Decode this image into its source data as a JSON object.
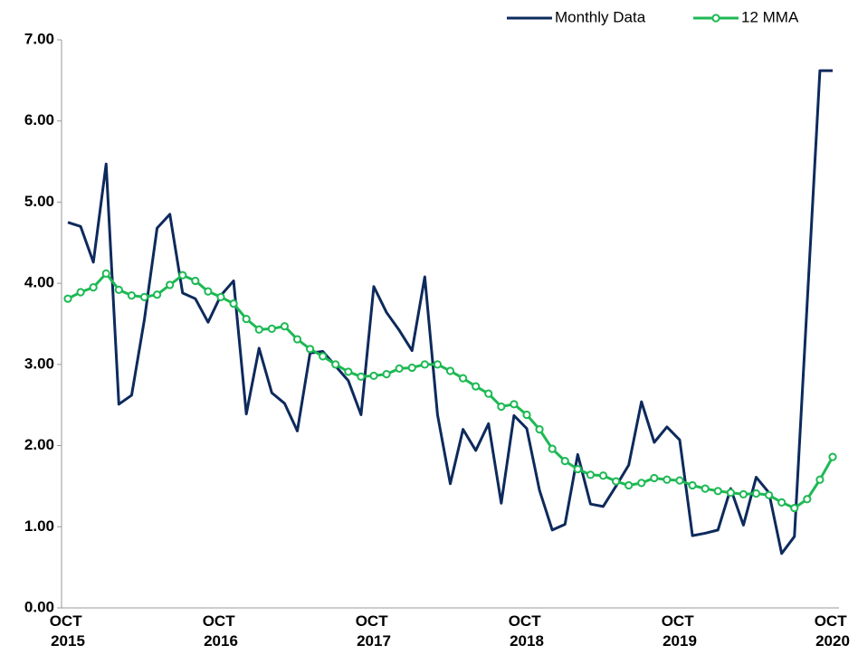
{
  "chart_data": {
    "type": "line",
    "categories": [
      "OCT 2015",
      null,
      null,
      null,
      null,
      null,
      null,
      null,
      null,
      null,
      null,
      null,
      "OCT 2016",
      null,
      null,
      null,
      null,
      null,
      null,
      null,
      null,
      null,
      null,
      null,
      "OCT 2017",
      null,
      null,
      null,
      null,
      null,
      null,
      null,
      null,
      null,
      null,
      null,
      "OCT 2018",
      null,
      null,
      null,
      null,
      null,
      null,
      null,
      null,
      null,
      null,
      null,
      "OCT 2019",
      null,
      null,
      null,
      null,
      null,
      null,
      null,
      null,
      null,
      null,
      null,
      "OCT 2020"
    ],
    "series": [
      {
        "name": "Monthly Data",
        "color": "#0d2a5c",
        "marker": false,
        "values": [
          4.75,
          4.7,
          4.26,
          5.47,
          2.51,
          2.62,
          3.55,
          4.68,
          4.85,
          3.88,
          3.81,
          3.52,
          3.85,
          4.03,
          2.39,
          3.2,
          2.65,
          2.52,
          2.18,
          3.14,
          3.16,
          2.98,
          2.8,
          2.38,
          3.96,
          3.64,
          3.42,
          3.17,
          4.08,
          2.38,
          1.53,
          2.2,
          1.94,
          2.27,
          1.29,
          2.37,
          2.21,
          1.45,
          0.96,
          1.03,
          1.89,
          1.28,
          1.25,
          1.5,
          1.76,
          2.54,
          2.04,
          2.23,
          2.07,
          0.89,
          0.92,
          0.96,
          1.47,
          1.02,
          1.61,
          1.42,
          0.67,
          0.88,
          3.75,
          6.62,
          6.62
        ]
      },
      {
        "name": "12 MMA",
        "color": "#1db954",
        "marker": true,
        "values": [
          3.81,
          3.89,
          3.95,
          4.12,
          3.92,
          3.85,
          3.83,
          3.86,
          3.98,
          4.1,
          4.03,
          3.9,
          3.83,
          3.75,
          3.56,
          3.43,
          3.44,
          3.47,
          3.31,
          3.19,
          3.1,
          3.0,
          2.91,
          2.85,
          2.86,
          2.88,
          2.95,
          2.96,
          3.0,
          3.0,
          2.92,
          2.83,
          2.73,
          2.64,
          2.48,
          2.51,
          2.38,
          2.2,
          1.96,
          1.81,
          1.71,
          1.64,
          1.63,
          1.56,
          1.51,
          1.54,
          1.6,
          1.58,
          1.57,
          1.51,
          1.47,
          1.44,
          1.42,
          1.4,
          1.41,
          1.39,
          1.3,
          1.23,
          1.34,
          1.58,
          1.86
        ]
      }
    ],
    "ylim": [
      0,
      7
    ],
    "yticks": [
      {
        "value": 0,
        "label": "0.00"
      },
      {
        "value": 1,
        "label": "1.00"
      },
      {
        "value": 2,
        "label": "2.00"
      },
      {
        "value": 3,
        "label": "3.00"
      },
      {
        "value": 4,
        "label": "4.00"
      },
      {
        "value": 5,
        "label": "5.00"
      },
      {
        "value": 6,
        "label": "6.00"
      },
      {
        "value": 7,
        "label": "7.00"
      }
    ],
    "grid": false,
    "legend": "top-right"
  }
}
